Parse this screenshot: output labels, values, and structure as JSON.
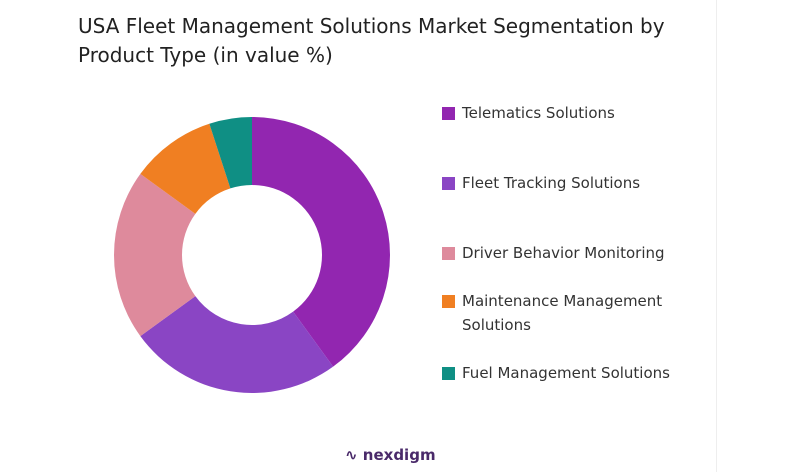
{
  "chart_data": {
    "type": "pie",
    "title": "USA Fleet Management Solutions Market Segmentation by Product Type (in value %)",
    "categories": [
      "Telematics Solutions",
      "Fleet Tracking Solutions",
      "Driver Behavior Monitoring",
      "Maintenance Management Solutions",
      "Fuel Management Solutions"
    ],
    "values": [
      40,
      25,
      20,
      10,
      5
    ],
    "colors": [
      "#9226b0",
      "#8a45c4",
      "#de8a9c",
      "#f07f22",
      "#0f8f84"
    ],
    "donut": true
  },
  "footer": {
    "logo": "nexdigm"
  }
}
